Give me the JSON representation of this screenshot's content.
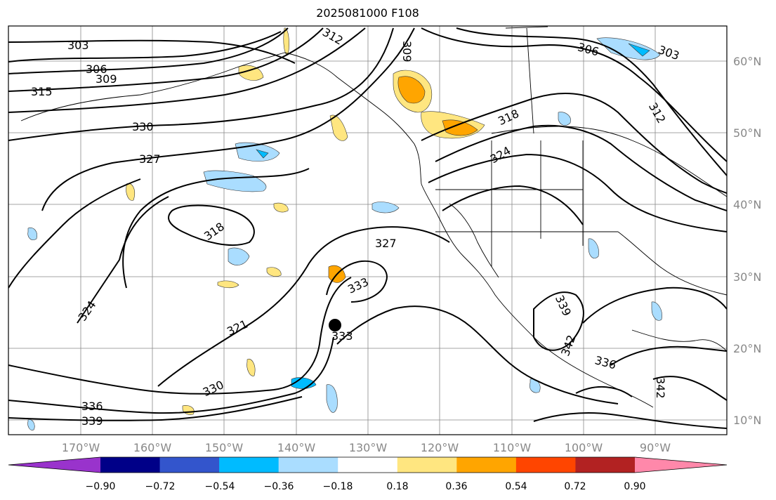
{
  "title": "2025081000 F108",
  "lon_labels": [
    "170°W",
    "160°W",
    "150°W",
    "140°W",
    "130°W",
    "120°W",
    "110°W",
    "100°W",
    "90°W"
  ],
  "lat_labels": [
    "60°N",
    "50°N",
    "40°N",
    "30°N",
    "20°N",
    "10°N"
  ],
  "contour_labels": [
    "303",
    "306",
    "309",
    "312",
    "315",
    "318",
    "321",
    "324",
    "327",
    "330",
    "333",
    "336",
    "339",
    "342",
    "309",
    "303",
    "306",
    "312",
    "318",
    "324",
    "327",
    "330",
    "333",
    "336",
    "339",
    "342"
  ],
  "colorbar": {
    "ticks": [
      "−0.90",
      "−0.72",
      "−0.54",
      "−0.36",
      "−0.18",
      "0.18",
      "0.36",
      "0.54",
      "0.72",
      "0.90"
    ],
    "colors": [
      "#9933cc",
      "#000088",
      "#3355cc",
      "#00bbff",
      "#aaddff",
      "#ffffff",
      "#ffe680",
      "#ffa500",
      "#ff4500",
      "#b22222",
      "#ff88aa"
    ]
  },
  "marker": {
    "type": "storm-center"
  }
}
